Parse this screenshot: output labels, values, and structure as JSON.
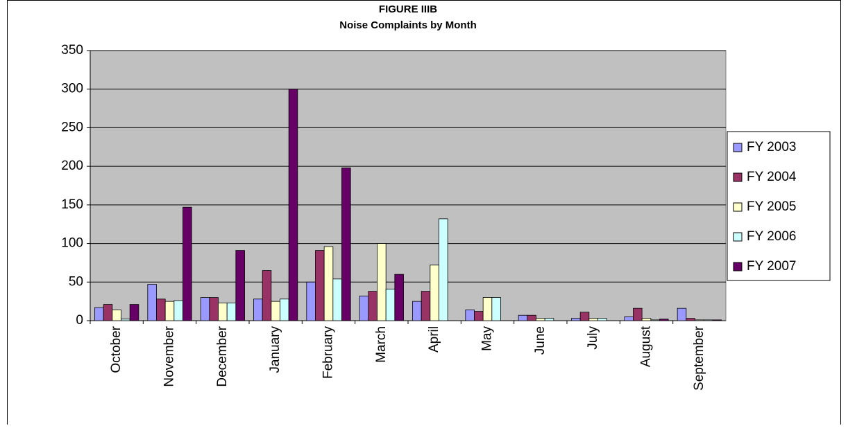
{
  "chart_data": {
    "type": "bar",
    "title": "FIGURE IIIB",
    "subtitle": "Noise Complaints by Month",
    "categories": [
      "October",
      "November",
      "December",
      "January",
      "February",
      "March",
      "April",
      "May",
      "June",
      "July",
      "August",
      "September"
    ],
    "series": [
      {
        "name": "FY 2003",
        "color": "#9999ff",
        "values": [
          17,
          47,
          30,
          28,
          50,
          32,
          25,
          14,
          7,
          3,
          5,
          16
        ]
      },
      {
        "name": "FY 2004",
        "color": "#993366",
        "values": [
          21,
          28,
          30,
          65,
          91,
          38,
          38,
          12,
          7,
          11,
          16,
          3
        ]
      },
      {
        "name": "FY 2005",
        "color": "#ffffcc",
        "values": [
          14,
          25,
          23,
          25,
          96,
          100,
          72,
          30,
          3,
          3,
          3,
          1
        ]
      },
      {
        "name": "FY 2006",
        "color": "#ccffff",
        "values": [
          2,
          26,
          23,
          28,
          54,
          41,
          132,
          30,
          3,
          3,
          1,
          1
        ]
      },
      {
        "name": "FY 2007",
        "color": "#660066",
        "values": [
          21,
          147,
          91,
          300,
          198,
          60,
          0,
          0,
          0,
          0,
          2,
          1
        ]
      }
    ],
    "ylim": [
      0,
      350
    ],
    "yticks": [
      0,
      50,
      100,
      150,
      200,
      250,
      300,
      350
    ],
    "grid": true,
    "legend": "right",
    "plot_background": "#c0c0c0"
  }
}
